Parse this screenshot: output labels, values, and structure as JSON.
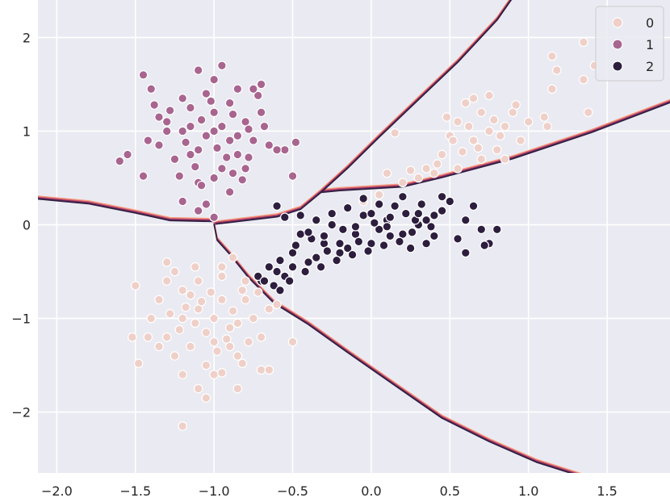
{
  "chart_data": {
    "type": "scatter",
    "title": "",
    "xlabel": "",
    "ylabel": "",
    "xlim": [
      -2.12,
      1.9
    ],
    "ylim": [
      -2.65,
      2.4
    ],
    "grid": true,
    "legend_placement": "top-right",
    "background_color": "#eaeaf2",
    "grid_color": "#ffffff",
    "x_ticks": [
      {
        "value": -2.0,
        "label": "−2.0"
      },
      {
        "value": -1.5,
        "label": "−1.5"
      },
      {
        "value": -1.0,
        "label": "−1.0"
      },
      {
        "value": -0.5,
        "label": "−0.5"
      },
      {
        "value": 0.0,
        "label": "0.0"
      },
      {
        "value": 0.5,
        "label": "0.5"
      },
      {
        "value": 1.0,
        "label": "1.0"
      },
      {
        "value": 1.5,
        "label": "1.5"
      }
    ],
    "y_ticks": [
      {
        "value": 2,
        "label": "2"
      },
      {
        "value": 1,
        "label": "1"
      },
      {
        "value": 0,
        "label": "0"
      },
      {
        "value": -1,
        "label": "−1"
      },
      {
        "value": -2,
        "label": "−2"
      }
    ],
    "series": [
      {
        "name": "0",
        "color": "#efd0c8",
        "points": [
          [
            -1.2,
            -0.7
          ],
          [
            -1.1,
            -0.9
          ],
          [
            -0.9,
            -1.1
          ],
          [
            -1.3,
            -1.2
          ],
          [
            -1.05,
            -1.5
          ],
          [
            -0.8,
            -0.6
          ],
          [
            -1.25,
            -0.5
          ],
          [
            -0.95,
            -0.8
          ],
          [
            -1.15,
            -1.3
          ],
          [
            -0.85,
            -1.4
          ],
          [
            -1.35,
            -0.8
          ],
          [
            -1.0,
            -1.0
          ],
          [
            -0.75,
            -1.0
          ],
          [
            -1.1,
            -0.6
          ],
          [
            -1.2,
            -1.0
          ],
          [
            -0.9,
            -1.3
          ],
          [
            -1.0,
            -1.6
          ],
          [
            -0.7,
            -1.2
          ],
          [
            -1.3,
            -0.6
          ],
          [
            -0.8,
            -0.8
          ],
          [
            -1.15,
            -0.75
          ],
          [
            -0.95,
            -0.55
          ],
          [
            -1.05,
            -1.15
          ],
          [
            -0.85,
            -1.05
          ],
          [
            -1.25,
            -1.4
          ],
          [
            -0.7,
            -1.55
          ],
          [
            -1.4,
            -1.0
          ],
          [
            -1.1,
            -1.75
          ],
          [
            -0.65,
            -0.9
          ],
          [
            -1.18,
            -0.88
          ],
          [
            -0.88,
            -0.92
          ],
          [
            -1.02,
            -0.72
          ],
          [
            -1.12,
            -1.05
          ],
          [
            -0.92,
            -1.22
          ],
          [
            -1.22,
            -1.12
          ],
          [
            -0.78,
            -1.25
          ],
          [
            -1.08,
            -0.82
          ],
          [
            -0.98,
            -1.35
          ],
          [
            -1.28,
            -0.95
          ],
          [
            -0.82,
            -0.7
          ],
          [
            -1.52,
            -1.2
          ],
          [
            -1.5,
            -0.65
          ],
          [
            -1.42,
            -1.2
          ],
          [
            -1.48,
            -1.48
          ],
          [
            -1.2,
            -2.15
          ],
          [
            -0.85,
            -1.75
          ],
          [
            -0.5,
            -1.25
          ],
          [
            -0.6,
            -0.85
          ],
          [
            -0.65,
            -1.55
          ],
          [
            -1.05,
            -1.85
          ],
          [
            -1.12,
            -0.45
          ],
          [
            -0.95,
            -0.45
          ],
          [
            -1.3,
            -0.4
          ],
          [
            -0.95,
            -1.58
          ],
          [
            -1.2,
            -1.6
          ],
          [
            -0.88,
            -0.35
          ],
          [
            -0.72,
            -0.72
          ],
          [
            -1.35,
            -1.3
          ],
          [
            -1.0,
            -1.25
          ],
          [
            -0.82,
            -1.48
          ],
          [
            0.55,
            1.1
          ],
          [
            0.7,
            1.2
          ],
          [
            0.85,
            1.05
          ],
          [
            0.65,
            0.9
          ],
          [
            0.45,
            0.75
          ],
          [
            0.8,
            0.8
          ],
          [
            0.6,
            1.3
          ],
          [
            0.9,
            1.2
          ],
          [
            0.5,
            0.95
          ],
          [
            0.75,
            1.0
          ],
          [
            1.0,
            1.1
          ],
          [
            0.4,
            0.55
          ],
          [
            0.95,
            0.9
          ],
          [
            0.7,
            0.7
          ],
          [
            0.55,
            0.6
          ],
          [
            0.85,
            0.7
          ],
          [
            1.1,
            1.15
          ],
          [
            0.62,
            1.05
          ],
          [
            0.78,
            1.12
          ],
          [
            0.48,
            1.15
          ],
          [
            0.92,
            1.28
          ],
          [
            0.68,
            0.82
          ],
          [
            0.58,
            0.78
          ],
          [
            0.82,
            0.95
          ],
          [
            1.15,
            1.45
          ],
          [
            1.18,
            1.65
          ],
          [
            1.15,
            1.8
          ],
          [
            1.35,
            1.95
          ],
          [
            1.35,
            1.55
          ],
          [
            1.42,
            1.7
          ],
          [
            1.38,
            1.2
          ],
          [
            0.15,
            0.98
          ],
          [
            0.25,
            0.58
          ],
          [
            0.1,
            0.55
          ],
          [
            0.3,
            0.5
          ],
          [
            0.2,
            0.45
          ],
          [
            -0.05,
            0.25
          ],
          [
            0.05,
            0.32
          ],
          [
            0.42,
            0.65
          ],
          [
            1.12,
            1.05
          ],
          [
            0.35,
            0.6
          ],
          [
            0.65,
            1.35
          ],
          [
            0.75,
            1.38
          ],
          [
            0.52,
            0.9
          ]
        ]
      },
      {
        "name": "1",
        "color": "#a8658f",
        "points": [
          [
            -1.0,
            1.2
          ],
          [
            -0.9,
            0.9
          ],
          [
            -1.1,
            0.8
          ],
          [
            -0.8,
            1.1
          ],
          [
            -1.2,
            1.0
          ],
          [
            -0.95,
            0.6
          ],
          [
            -1.05,
            1.4
          ],
          [
            -0.85,
            0.75
          ],
          [
            -1.15,
            1.25
          ],
          [
            -0.75,
            0.9
          ],
          [
            -1.25,
            0.7
          ],
          [
            -0.9,
            1.3
          ],
          [
            -1.0,
            0.5
          ],
          [
            -0.7,
            1.2
          ],
          [
            -1.3,
            1.1
          ],
          [
            -0.8,
            0.6
          ],
          [
            -1.1,
            0.45
          ],
          [
            -0.95,
            1.05
          ],
          [
            -1.2,
            1.35
          ],
          [
            -0.85,
            1.45
          ],
          [
            -1.05,
            0.95
          ],
          [
            -0.65,
            0.85
          ],
          [
            -1.35,
            0.85
          ],
          [
            -0.9,
            0.35
          ],
          [
            -1.15,
            1.05
          ],
          [
            -0.98,
            0.82
          ],
          [
            -0.88,
            1.18
          ],
          [
            -1.08,
            1.12
          ],
          [
            -0.78,
            1.02
          ],
          [
            -1.18,
            0.88
          ],
          [
            -0.92,
            0.72
          ],
          [
            -1.02,
            1.32
          ],
          [
            -0.72,
            1.38
          ],
          [
            -1.28,
            1.22
          ],
          [
            -0.82,
            0.48
          ],
          [
            -1.12,
            0.62
          ],
          [
            -0.68,
            1.05
          ],
          [
            -1.38,
            1.28
          ],
          [
            -1.45,
            1.6
          ],
          [
            -1.4,
            1.45
          ],
          [
            -1.35,
            1.15
          ],
          [
            -1.6,
            0.68
          ],
          [
            -1.55,
            0.75
          ],
          [
            -1.45,
            0.52
          ],
          [
            -1.42,
            0.9
          ],
          [
            -1.1,
            1.65
          ],
          [
            -1.0,
            1.55
          ],
          [
            -0.95,
            1.7
          ],
          [
            -0.7,
            1.5
          ],
          [
            -0.75,
            1.45
          ],
          [
            -0.5,
            0.52
          ],
          [
            -0.55,
            0.8
          ],
          [
            -0.6,
            0.8
          ],
          [
            -0.48,
            0.88
          ],
          [
            -1.2,
            0.25
          ],
          [
            -1.1,
            0.15
          ],
          [
            -1.0,
            0.08
          ],
          [
            -1.05,
            0.22
          ],
          [
            -0.88,
            0.55
          ],
          [
            -1.22,
            0.52
          ],
          [
            -1.3,
            1.0
          ],
          [
            -1.0,
            1.0
          ],
          [
            -0.85,
            0.95
          ],
          [
            -1.15,
            0.75
          ],
          [
            -0.78,
            0.72
          ],
          [
            -1.08,
            0.42
          ]
        ]
      },
      {
        "name": "2",
        "color": "#2d1e3e",
        "points": [
          [
            -0.5,
            -0.3
          ],
          [
            -0.3,
            -0.2
          ],
          [
            -0.1,
            -0.1
          ],
          [
            0.1,
            0.05
          ],
          [
            0.3,
            0.0
          ],
          [
            -0.4,
            -0.4
          ],
          [
            -0.2,
            -0.3
          ],
          [
            0.0,
            -0.2
          ],
          [
            0.2,
            -0.1
          ],
          [
            0.4,
            0.1
          ],
          [
            -0.6,
            -0.5
          ],
          [
            -0.45,
            -0.1
          ],
          [
            -0.25,
            0.0
          ],
          [
            -0.05,
            0.1
          ],
          [
            0.15,
            0.2
          ],
          [
            0.35,
            -0.2
          ],
          [
            -0.7,
            -0.6
          ],
          [
            -0.55,
            -0.55
          ],
          [
            -0.35,
            -0.35
          ],
          [
            -0.15,
            -0.25
          ],
          [
            0.05,
            -0.05
          ],
          [
            0.25,
            -0.25
          ],
          [
            0.45,
            0.15
          ],
          [
            -0.65,
            -0.45
          ],
          [
            -0.38,
            -0.15
          ],
          [
            -0.18,
            -0.05
          ],
          [
            0.02,
            0.02
          ],
          [
            0.22,
            0.12
          ],
          [
            0.32,
            0.22
          ],
          [
            -0.48,
            -0.22
          ],
          [
            -0.28,
            -0.28
          ],
          [
            -0.08,
            -0.18
          ],
          [
            0.12,
            -0.12
          ],
          [
            0.28,
            0.05
          ],
          [
            0.5,
            0.25
          ],
          [
            0.6,
            0.05
          ],
          [
            0.7,
            -0.05
          ],
          [
            0.75,
            -0.2
          ],
          [
            0.8,
            -0.05
          ],
          [
            0.55,
            -0.15
          ],
          [
            0.65,
            0.2
          ],
          [
            0.45,
            0.3
          ],
          [
            0.6,
            -0.3
          ],
          [
            0.72,
            -0.22
          ],
          [
            -0.72,
            -0.55
          ],
          [
            -0.68,
            -0.6
          ],
          [
            -0.62,
            -0.65
          ],
          [
            -0.58,
            -0.7
          ],
          [
            -0.52,
            -0.6
          ],
          [
            -0.42,
            -0.5
          ],
          [
            -0.32,
            -0.45
          ],
          [
            -0.22,
            -0.38
          ],
          [
            -0.12,
            -0.32
          ],
          [
            -0.02,
            -0.28
          ],
          [
            0.08,
            -0.22
          ],
          [
            0.18,
            -0.18
          ],
          [
            0.26,
            -0.08
          ],
          [
            0.38,
            -0.02
          ],
          [
            -0.6,
            0.2
          ],
          [
            -0.55,
            0.08
          ],
          [
            -0.45,
            0.1
          ],
          [
            -0.35,
            0.05
          ],
          [
            -0.15,
            0.18
          ],
          [
            -0.05,
            0.28
          ],
          [
            0.05,
            0.22
          ],
          [
            0.12,
            0.08
          ],
          [
            -0.25,
            0.12
          ],
          [
            0.2,
            0.3
          ],
          [
            -0.4,
            -0.08
          ],
          [
            -0.3,
            -0.12
          ],
          [
            -0.2,
            -0.2
          ],
          [
            -0.1,
            -0.02
          ],
          [
            0.0,
            0.12
          ],
          [
            0.1,
            -0.02
          ],
          [
            0.3,
            0.12
          ],
          [
            0.4,
            -0.12
          ],
          [
            0.35,
            0.05
          ],
          [
            -0.5,
            -0.45
          ],
          [
            -0.58,
            -0.38
          ]
        ]
      }
    ],
    "decision_boundaries": [
      {
        "between": [
          "0",
          "2"
        ],
        "points": [
          [
            -1.0,
            0.02
          ],
          [
            -0.6,
            0.1
          ],
          [
            -0.45,
            0.18
          ],
          [
            -0.32,
            0.36
          ],
          [
            -0.2,
            0.38
          ],
          [
            0.2,
            0.42
          ],
          [
            0.45,
            0.52
          ],
          [
            0.9,
            0.72
          ],
          [
            1.4,
            1.0
          ],
          [
            1.9,
            1.32
          ]
        ]
      },
      {
        "between": [
          "0",
          "0"
        ],
        "points": [
          [
            -0.32,
            0.36
          ],
          [
            -0.15,
            0.62
          ],
          [
            0.05,
            0.95
          ],
          [
            0.3,
            1.35
          ],
          [
            0.55,
            1.75
          ],
          [
            0.8,
            2.2
          ],
          [
            1.05,
            2.8
          ]
        ]
      },
      {
        "between": [
          "1",
          "0"
        ],
        "points": [
          [
            -2.12,
            0.29
          ],
          [
            -1.8,
            0.24
          ],
          [
            -1.5,
            0.14
          ],
          [
            -1.28,
            0.06
          ],
          [
            -1.0,
            0.05
          ]
        ]
      },
      {
        "between": [
          "0",
          "2"
        ],
        "points": [
          [
            -1.0,
            0.02
          ],
          [
            -0.98,
            -0.15
          ],
          [
            -0.9,
            -0.3
          ],
          [
            -0.78,
            -0.55
          ],
          [
            -0.62,
            -0.82
          ],
          [
            -0.4,
            -1.05
          ],
          [
            -0.15,
            -1.35
          ],
          [
            0.15,
            -1.7
          ],
          [
            0.45,
            -2.05
          ],
          [
            0.75,
            -2.3
          ],
          [
            1.05,
            -2.52
          ],
          [
            1.35,
            -2.68
          ]
        ]
      }
    ]
  }
}
